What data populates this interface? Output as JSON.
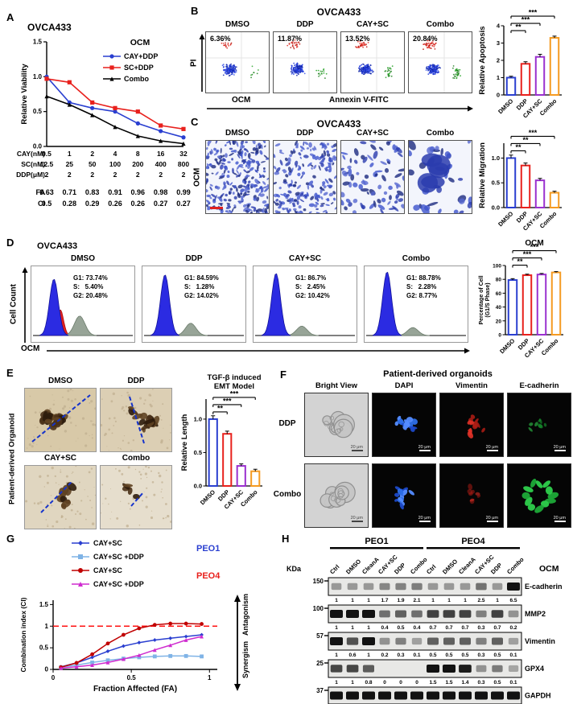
{
  "colors": {
    "blue": "#2a3fd0",
    "red": "#e8211d",
    "black": "#000000",
    "purple": "#9a30cf",
    "orange": "#f59b22",
    "lightblue": "#7fb3e6",
    "magenta": "#cf2bcf",
    "darkred": "#c00000"
  },
  "panelA": {
    "label": "A",
    "title": "OVCA433",
    "legend_title": "OCM",
    "chart_data": {
      "type": "line",
      "title": "OVCA433",
      "ylabel": "Relative Viability",
      "ylim": [
        0,
        1.5
      ],
      "yticks": [
        "0.0",
        "0.5",
        "1.0",
        "1.5"
      ],
      "series": [
        {
          "name": "CAY+DDP",
          "color_key": "blue",
          "marker": "circle",
          "values": [
            1.0,
            0.63,
            0.55,
            0.5,
            0.33,
            0.22,
            0.13
          ]
        },
        {
          "name": "SC+DDP",
          "color_key": "red",
          "marker": "square",
          "values": [
            0.97,
            0.92,
            0.63,
            0.55,
            0.5,
            0.3,
            0.25
          ]
        },
        {
          "name": "Combo",
          "color_key": "black",
          "marker": "triangle",
          "values": [
            0.72,
            0.6,
            0.45,
            0.28,
            0.15,
            0.08,
            0.04
          ]
        }
      ]
    },
    "dose_rows": [
      {
        "label": "CAY(nM)",
        "values": [
          "0.5",
          "1",
          "2",
          "4",
          "8",
          "16",
          "32"
        ]
      },
      {
        "label": "SC(nM)",
        "values": [
          "12.5",
          "25",
          "50",
          "100",
          "200",
          "400",
          "800"
        ]
      },
      {
        "label": "DDP(μM)",
        "values": [
          "2",
          "2",
          "2",
          "2",
          "2",
          "2",
          "2"
        ]
      }
    ],
    "fa_ci_rows": [
      {
        "label": "FA",
        "values": [
          "0.63",
          "0.71",
          "0.83",
          "0.91",
          "0.96",
          "0.98",
          "0.99"
        ]
      },
      {
        "label": "CI",
        "values": [
          "0.5",
          "0.28",
          "0.29",
          "0.26",
          "0.26",
          "0.27",
          "0.27"
        ]
      }
    ]
  },
  "panelB": {
    "label": "B",
    "title": "OVCA433",
    "y_axis_label": "PI",
    "x_axis_label": "Annexin V-FITC",
    "ocm_label": "OCM",
    "conditions": [
      {
        "name": "DMSO",
        "percent": "6.36%"
      },
      {
        "name": "DDP",
        "percent": "11.87%"
      },
      {
        "name": "CAY+SC",
        "percent": "13.52%"
      },
      {
        "name": "Combo",
        "percent": "20.84%"
      }
    ],
    "chart_data": {
      "type": "bar",
      "ylabel": "Relative Apoptosis",
      "categories": [
        "DMSO",
        "DDP",
        "CAY+SC",
        "Combo"
      ],
      "values": [
        1.0,
        1.8,
        2.2,
        3.3
      ],
      "errors": [
        0.08,
        0.12,
        0.15,
        0.1
      ],
      "bar_color_keys": [
        "blue",
        "red",
        "purple",
        "orange"
      ],
      "ylim": [
        0,
        4
      ],
      "yticks": [
        "0",
        "1",
        "2",
        "3",
        "4"
      ],
      "significance": [
        {
          "from": 0,
          "to": 1,
          "label": "**"
        },
        {
          "from": 0,
          "to": 2,
          "label": "***"
        },
        {
          "from": 0,
          "to": 3,
          "label": "***"
        }
      ]
    }
  },
  "panelC": {
    "label": "C",
    "title": "OVCA433",
    "ocm_label": "OCM",
    "conditions": [
      "DMSO",
      "DDP",
      "CAY+SC",
      "Combo"
    ],
    "chart_data": {
      "type": "bar",
      "ylabel": "Relative Migration",
      "categories": [
        "DMSO",
        "DDP",
        "CAY+SC",
        "Combo"
      ],
      "values": [
        1.0,
        0.85,
        0.55,
        0.3
      ],
      "errors": [
        0.06,
        0.05,
        0.04,
        0.03
      ],
      "bar_color_keys": [
        "blue",
        "red",
        "purple",
        "orange"
      ],
      "ylim": [
        0,
        1.3
      ],
      "yticks": [
        "0.0",
        "0.5",
        "1.0"
      ],
      "significance": [
        {
          "from": 0,
          "to": 1,
          "label": "**"
        },
        {
          "from": 0,
          "to": 2,
          "label": "**"
        },
        {
          "from": 0,
          "to": 3,
          "label": "***"
        }
      ]
    }
  },
  "panelD": {
    "label": "D",
    "title": "OVCA433",
    "ylabel": "Cell Count",
    "ocm_label": "OCM",
    "conditions": [
      {
        "name": "DMSO",
        "stats": [
          "G1: 73.74%",
          "S:   5.40%",
          "G2: 20.48%"
        ]
      },
      {
        "name": "DDP",
        "stats": [
          "G1: 84.59%",
          "S:   1.28%",
          "G2: 14.02%"
        ]
      },
      {
        "name": "CAY+SC",
        "stats": [
          "G1: 86.7%",
          "S:   2.45%",
          "G2: 10.42%"
        ]
      },
      {
        "name": "Combo",
        "stats": [
          "G1: 88.78%",
          "S:   2.28%",
          "G2: 8.77%"
        ]
      }
    ],
    "chart_data": {
      "type": "bar",
      "title": "OCM",
      "ylabel_lines": [
        "Percentage of Cell",
        "(G1/S Phase)"
      ],
      "categories": [
        "DMSO",
        "DDP",
        "CAY+SC",
        "Combo"
      ],
      "values": [
        79,
        86,
        87,
        90
      ],
      "errors": [
        2,
        1.5,
        1.5,
        1.2
      ],
      "bar_color_keys": [
        "blue",
        "red",
        "purple",
        "orange"
      ],
      "ylim": [
        0,
        100
      ],
      "yticks": [
        "0",
        "20",
        "40",
        "60",
        "80",
        "100"
      ],
      "significance": [
        {
          "from": 0,
          "to": 1,
          "label": "**"
        },
        {
          "from": 0,
          "to": 2,
          "label": "***"
        },
        {
          "from": 0,
          "to": 3,
          "label": "***"
        }
      ]
    }
  },
  "panelE": {
    "label": "E",
    "side_label": "Patient-derived Organoid",
    "conditions": [
      "DMSO",
      "DDP",
      "CAY+SC",
      "Combo"
    ],
    "chart_data": {
      "type": "bar",
      "title": "TGF-β induced EMT Model",
      "title_lines": [
        "TGF-β induced",
        "EMT Model"
      ],
      "ylabel": "Relative Length",
      "categories": [
        "DMSO",
        "DDP",
        "CAY+SC",
        "Combo"
      ],
      "values": [
        1.0,
        0.78,
        0.3,
        0.22
      ],
      "errors": [
        0.05,
        0.04,
        0.03,
        0.03
      ],
      "bar_color_keys": [
        "blue",
        "red",
        "purple",
        "orange"
      ],
      "ylim": [
        0,
        1.3
      ],
      "yticks": [
        "0.0",
        "0.5",
        "1.0"
      ],
      "significance": [
        {
          "from": 0,
          "to": 1,
          "label": "**"
        },
        {
          "from": 0,
          "to": 2,
          "label": "***"
        },
        {
          "from": 0,
          "to": 3,
          "label": "***"
        }
      ]
    }
  },
  "panelF": {
    "label": "F",
    "title": "Patient-derived organoids",
    "columns": [
      "Bright View",
      "DAPI",
      "Vimentin",
      "E-cadherin"
    ],
    "rows": [
      "DDP",
      "Combo"
    ],
    "scale_label": "20 μm"
  },
  "panelG": {
    "label": "G",
    "legend": [
      {
        "name": "CAY+SC",
        "color_key": "blue",
        "marker": "diamond",
        "group": "PEO1"
      },
      {
        "name": "CAY+SC +DDP",
        "color_key": "lightblue",
        "marker": "square",
        "group": "PEO1"
      },
      {
        "name": "CAY+SC",
        "color_key": "darkred",
        "marker": "circle",
        "group": "PEO4"
      },
      {
        "name": "CAY+SC +DDP",
        "color_key": "magenta",
        "marker": "triangle",
        "group": "PEO4"
      }
    ],
    "group_labels": [
      {
        "name": "PEO1",
        "color_key": "blue"
      },
      {
        "name": "PEO4",
        "color_key": "red"
      }
    ],
    "right_labels": [
      {
        "name": "Antagonism",
        "direction": "up"
      },
      {
        "name": "Synergism",
        "direction": "down"
      }
    ],
    "chart_data": {
      "type": "line",
      "xlabel": "Fraction Affected (FA)",
      "ylabel": "Combination index (CI)",
      "xlim": [
        0,
        1.05
      ],
      "ylim": [
        0,
        1.6
      ],
      "xticks": [
        "0",
        "0.5",
        "1"
      ],
      "yticks": [
        "0",
        "0.5",
        "1",
        "1.5"
      ],
      "reference_line_y": 1,
      "x": [
        0.05,
        0.15,
        0.25,
        0.35,
        0.45,
        0.55,
        0.65,
        0.75,
        0.85,
        0.95
      ],
      "series": [
        {
          "name": "PEO1 CAY+SC",
          "color_key": "blue",
          "marker": "diamond",
          "values": [
            0.06,
            0.15,
            0.28,
            0.42,
            0.54,
            0.62,
            0.68,
            0.72,
            0.76,
            0.8
          ]
        },
        {
          "name": "PEO1 CAY+SC +DDP",
          "color_key": "lightblue",
          "marker": "square",
          "values": [
            0.05,
            0.1,
            0.16,
            0.21,
            0.25,
            0.28,
            0.3,
            0.31,
            0.31,
            0.3
          ]
        },
        {
          "name": "PEO4 CAY+SC",
          "color_key": "darkred",
          "marker": "circle",
          "values": [
            0.05,
            0.15,
            0.35,
            0.6,
            0.8,
            0.95,
            1.03,
            1.06,
            1.06,
            1.05
          ]
        },
        {
          "name": "PEO4 CAY+SC +DDP",
          "color_key": "magenta",
          "marker": "triangle",
          "values": [
            0.03,
            0.06,
            0.1,
            0.16,
            0.24,
            0.33,
            0.45,
            0.56,
            0.68,
            0.76
          ]
        }
      ]
    }
  },
  "panelH": {
    "label": "H",
    "kda_label": "KDa",
    "ocm_label": "OCM",
    "groups": [
      "PEO1",
      "PEO4"
    ],
    "lanes": [
      "Ctrl",
      "DMSO",
      "CleanA",
      "CAY+SC",
      "DDP",
      "Combo",
      "Ctrl",
      "DMSO",
      "CleanA",
      "CAY+SC",
      "DDP",
      "Combo"
    ],
    "blots": [
      {
        "protein": "E-cadherin",
        "marker": "150",
        "values": [
          1,
          1,
          1,
          1.7,
          1.9,
          2.1,
          1,
          1,
          1,
          2.5,
          1,
          6.5
        ],
        "value_labels": [
          "1",
          "1",
          "1",
          "1.7",
          "1.9",
          "2.1",
          "1",
          "1",
          "1",
          "2.5",
          "1",
          "6.5"
        ]
      },
      {
        "protein": "MMP2",
        "marker": "100",
        "values": [
          1,
          1,
          1,
          0.4,
          0.5,
          0.4,
          0.7,
          0.7,
          0.7,
          0.3,
          0.7,
          0.2
        ],
        "value_labels": [
          "1",
          "1",
          "1",
          "0.4",
          "0.5",
          "0.4",
          "0.7",
          "0.7",
          "0.7",
          "0.3",
          "0.7",
          "0.2"
        ]
      },
      {
        "protein": "Vimentin",
        "marker": "57",
        "values": [
          1,
          0.6,
          1,
          0.2,
          0.3,
          0.1,
          0.5,
          0.5,
          0.5,
          0.3,
          0.5,
          0.1
        ],
        "value_labels": [
          "1",
          "0.6",
          "1",
          "0.2",
          "0.3",
          "0.1",
          "0.5",
          "0.5",
          "0.5",
          "0.3",
          "0.5",
          "0.1"
        ]
      },
      {
        "protein": "GPX4",
        "marker": "25",
        "values": [
          1,
          1,
          0.8,
          0,
          0,
          0,
          1.5,
          1.5,
          1.4,
          0.3,
          0.5,
          0.1
        ],
        "value_labels": [
          "1",
          "1",
          "0.8",
          "0",
          "0",
          "0",
          "1.5",
          "1.5",
          "1.4",
          "0.3",
          "0.5",
          "0.1"
        ]
      },
      {
        "protein": "GAPDH",
        "marker": "37",
        "values": [
          1,
          1,
          1,
          1,
          1,
          1,
          1,
          1,
          1,
          1,
          1,
          1
        ]
      }
    ]
  }
}
